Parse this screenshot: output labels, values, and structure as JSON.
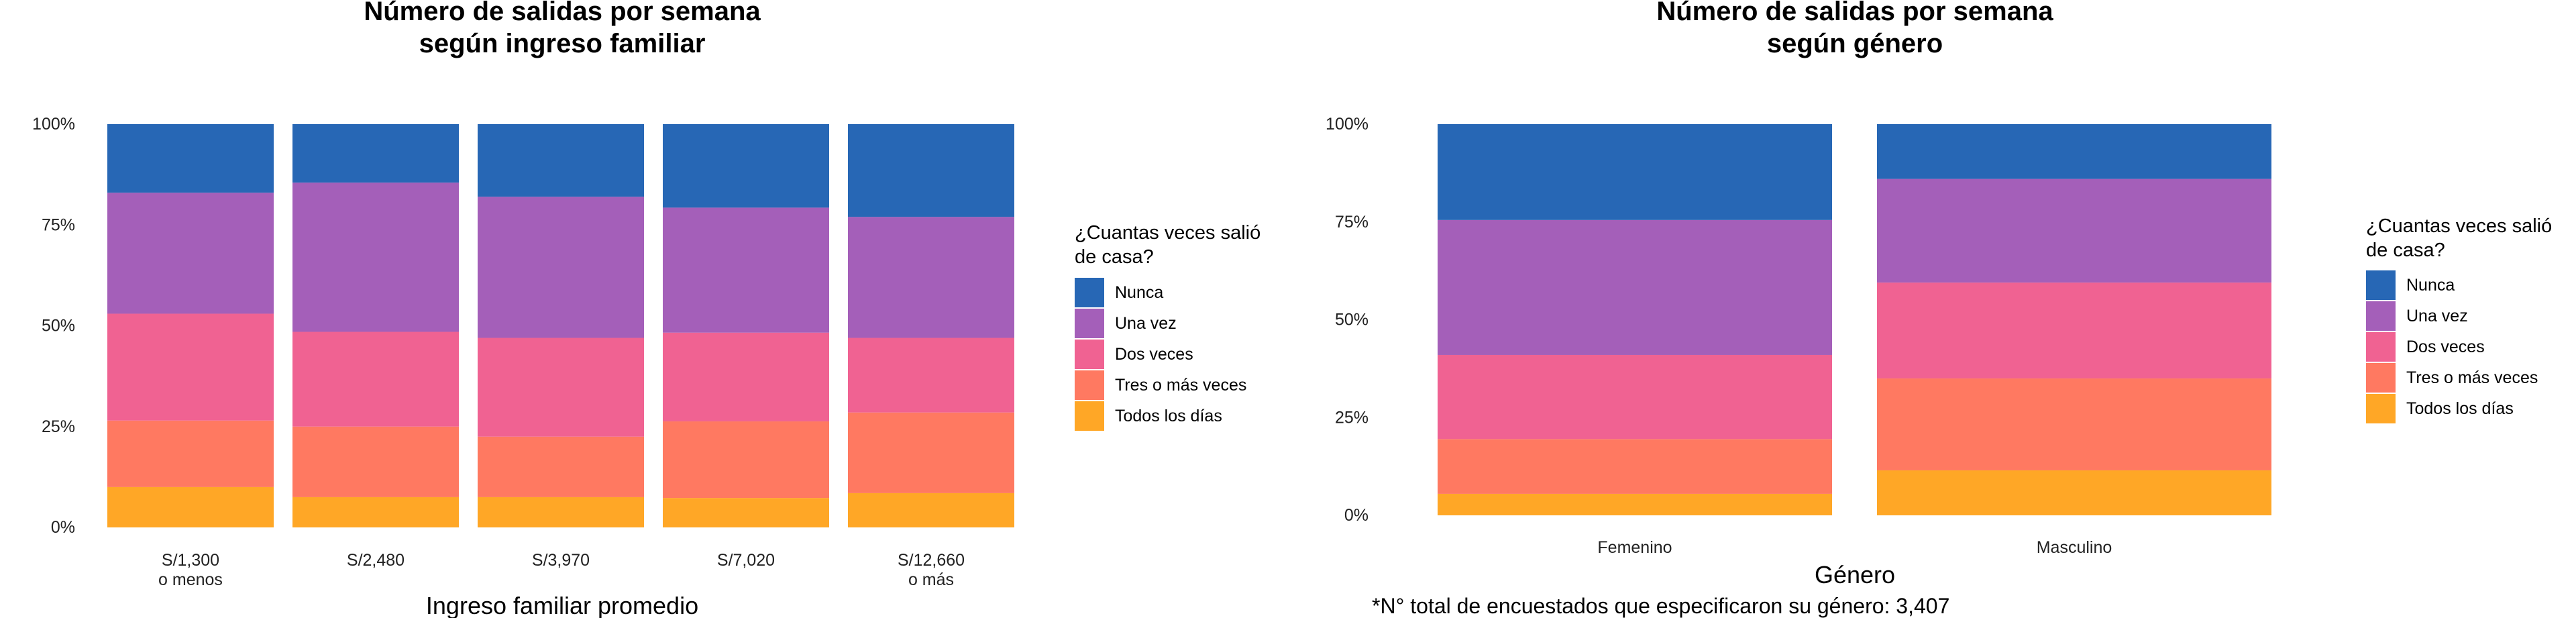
{
  "chart_data": [
    {
      "type": "bar",
      "stacked": true,
      "title": [
        "Número de salidas por semana",
        "según ingreso familiar"
      ],
      "xlabel": "Ingreso familiar promedio",
      "ylabel": "",
      "ylim": [
        0,
        1
      ],
      "yticks": [
        "0%",
        "25%",
        "50%",
        "75%",
        "100%"
      ],
      "categories": [
        [
          "S/1,300",
          "o menos"
        ],
        [
          "S/2,480"
        ],
        [
          "S/3,970"
        ],
        [
          "S/7,020"
        ],
        [
          "S/12,660",
          "o más"
        ]
      ],
      "legend_title": [
        "¿Cuantas veces salió",
        "de casa?"
      ],
      "legend_position": "right",
      "series": [
        {
          "name": "Todos los días",
          "color": "#FFA726",
          "values": [
            0.1,
            0.075,
            0.075,
            0.073,
            0.085
          ]
        },
        {
          "name": "Tres o más veces",
          "color": "#FF7961",
          "values": [
            0.165,
            0.175,
            0.15,
            0.19,
            0.2
          ]
        },
        {
          "name": "Dos veces",
          "color": "#F06292",
          "values": [
            0.265,
            0.235,
            0.245,
            0.22,
            0.185
          ]
        },
        {
          "name": "Una vez",
          "color": "#A45FB9",
          "values": [
            0.3,
            0.37,
            0.35,
            0.31,
            0.3
          ]
        },
        {
          "name": "Nunca",
          "color": "#2767B5",
          "values": [
            0.17,
            0.145,
            0.18,
            0.207,
            0.23
          ]
        }
      ],
      "caption": ""
    },
    {
      "type": "bar",
      "stacked": true,
      "title": [
        "Número de salidas por semana",
        "según género"
      ],
      "xlabel": "Género",
      "ylabel": "",
      "ylim": [
        0,
        1
      ],
      "yticks": [
        "0%",
        "25%",
        "50%",
        "75%",
        "100%"
      ],
      "categories": [
        [
          "Femenino"
        ],
        [
          "Masculino"
        ]
      ],
      "legend_title": [
        "¿Cuantas veces salió",
        "de casa?"
      ],
      "legend_position": "right",
      "series": [
        {
          "name": "Todos los días",
          "color": "#FFA726",
          "values": [
            0.055,
            0.115
          ]
        },
        {
          "name": "Tres o más veces",
          "color": "#FF7961",
          "values": [
            0.14,
            0.235
          ]
        },
        {
          "name": "Dos veces",
          "color": "#F06292",
          "values": [
            0.215,
            0.245
          ]
        },
        {
          "name": "Una vez",
          "color": "#A45FB9",
          "values": [
            0.345,
            0.265
          ]
        },
        {
          "name": "Nunca",
          "color": "#2767B5",
          "values": [
            0.245,
            0.14
          ]
        }
      ],
      "caption": "*N° total de encuestados que especificaron su género: 3,407"
    }
  ]
}
